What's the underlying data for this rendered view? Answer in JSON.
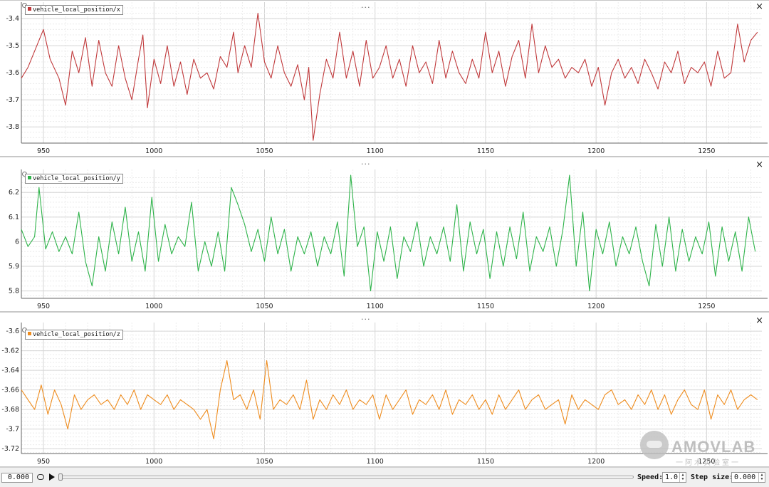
{
  "panels": [
    {
      "legend": "vehicle_local_position/x",
      "color": "#c0393b",
      "x_ticks": [
        "950",
        "1000",
        "1050",
        "1100",
        "1150",
        "1200",
        "1250"
      ],
      "y_ticks": [
        "-3.4",
        "-3.5",
        "-3.6",
        "-3.7",
        "-3.8"
      ],
      "dots": "...",
      "close": "×"
    },
    {
      "legend": "vehicle_local_position/y",
      "color": "#2eb34a",
      "x_ticks": [
        "950",
        "1000",
        "1050",
        "1100",
        "1150",
        "1200",
        "1250"
      ],
      "y_ticks": [
        "6.2",
        "6.1",
        "6",
        "5.9",
        "5.8"
      ],
      "dots": "...",
      "close": "×"
    },
    {
      "legend": "vehicle_local_position/z",
      "color": "#ee8c1e",
      "x_ticks": [
        "950",
        "1000",
        "1050",
        "1100",
        "1150",
        "1200",
        "1250"
      ],
      "y_ticks": [
        "-3.6",
        "-3.62",
        "-3.64",
        "-3.66",
        "-3.68",
        "-3.7",
        "-3.72"
      ],
      "dots": "...",
      "close": "×"
    }
  ],
  "chart_data": [
    {
      "type": "line",
      "series": [
        {
          "name": "vehicle_local_position/x",
          "color": "#c0393b"
        }
      ],
      "xlim": [
        940,
        1275
      ],
      "ylim": [
        -3.86,
        -3.36
      ],
      "x_ticks": [
        950,
        1000,
        1050,
        1100,
        1150,
        1200,
        1250
      ],
      "y_ticks": [
        -3.4,
        -3.5,
        -3.6,
        -3.7,
        -3.8
      ],
      "grid": true,
      "legend_position": "top-left",
      "x": [
        940,
        943,
        947,
        950,
        953,
        957,
        960,
        963,
        966,
        969,
        972,
        975,
        978,
        981,
        984,
        987,
        990,
        993,
        995,
        997,
        1000,
        1003,
        1006,
        1009,
        1012,
        1015,
        1018,
        1021,
        1024,
        1027,
        1030,
        1033,
        1036,
        1038,
        1041,
        1044,
        1047,
        1050,
        1053,
        1056,
        1059,
        1062,
        1065,
        1068,
        1070,
        1072,
        1075,
        1078,
        1081,
        1084,
        1087,
        1090,
        1093,
        1096,
        1099,
        1102,
        1105,
        1108,
        1111,
        1114,
        1117,
        1120,
        1123,
        1126,
        1129,
        1132,
        1135,
        1138,
        1141,
        1144,
        1147,
        1150,
        1153,
        1156,
        1159,
        1162,
        1165,
        1168,
        1171,
        1174,
        1177,
        1180,
        1183,
        1186,
        1189,
        1192,
        1195,
        1198,
        1201,
        1204,
        1207,
        1210,
        1213,
        1216,
        1219,
        1222,
        1225,
        1228,
        1231,
        1234,
        1237,
        1240,
        1243,
        1246,
        1249,
        1252,
        1255,
        1258,
        1261,
        1264,
        1267,
        1270,
        1273
      ],
      "values": [
        -3.62,
        -3.58,
        -3.5,
        -3.44,
        -3.55,
        -3.62,
        -3.72,
        -3.52,
        -3.6,
        -3.47,
        -3.65,
        -3.48,
        -3.6,
        -3.65,
        -3.5,
        -3.62,
        -3.7,
        -3.55,
        -3.46,
        -3.73,
        -3.55,
        -3.64,
        -3.5,
        -3.65,
        -3.56,
        -3.68,
        -3.55,
        -3.62,
        -3.6,
        -3.66,
        -3.54,
        -3.58,
        -3.45,
        -3.6,
        -3.5,
        -3.58,
        -3.38,
        -3.56,
        -3.62,
        -3.5,
        -3.6,
        -3.65,
        -3.57,
        -3.7,
        -3.58,
        -3.85,
        -3.68,
        -3.55,
        -3.62,
        -3.45,
        -3.62,
        -3.52,
        -3.65,
        -3.48,
        -3.62,
        -3.58,
        -3.5,
        -3.62,
        -3.55,
        -3.65,
        -3.5,
        -3.6,
        -3.56,
        -3.64,
        -3.48,
        -3.62,
        -3.52,
        -3.6,
        -3.64,
        -3.55,
        -3.62,
        -3.45,
        -3.6,
        -3.52,
        -3.65,
        -3.54,
        -3.48,
        -3.62,
        -3.42,
        -3.6,
        -3.5,
        -3.58,
        -3.55,
        -3.62,
        -3.58,
        -3.6,
        -3.55,
        -3.65,
        -3.58,
        -3.72,
        -3.6,
        -3.55,
        -3.62,
        -3.58,
        -3.64,
        -3.55,
        -3.6,
        -3.66,
        -3.56,
        -3.6,
        -3.52,
        -3.64,
        -3.58,
        -3.6,
        -3.56,
        -3.65,
        -3.52,
        -3.62,
        -3.6,
        -3.42,
        -3.56,
        -3.48,
        -3.45
      ]
    },
    {
      "type": "line",
      "series": [
        {
          "name": "vehicle_local_position/y",
          "color": "#2eb34a"
        }
      ],
      "xlim": [
        940,
        1275
      ],
      "ylim": [
        5.77,
        6.27
      ],
      "x_ticks": [
        950,
        1000,
        1050,
        1100,
        1150,
        1200,
        1250
      ],
      "y_ticks": [
        6.2,
        6.1,
        6,
        5.9,
        5.8
      ],
      "grid": true,
      "legend_position": "top-left",
      "x": [
        940,
        943,
        946,
        948,
        951,
        954,
        957,
        960,
        963,
        966,
        969,
        972,
        975,
        978,
        981,
        984,
        987,
        990,
        993,
        996,
        999,
        1002,
        1005,
        1008,
        1011,
        1014,
        1017,
        1020,
        1023,
        1026,
        1029,
        1032,
        1035,
        1038,
        1041,
        1044,
        1047,
        1050,
        1053,
        1056,
        1059,
        1062,
        1065,
        1068,
        1071,
        1074,
        1077,
        1080,
        1083,
        1086,
        1089,
        1092,
        1095,
        1098,
        1101,
        1104,
        1107,
        1110,
        1113,
        1116,
        1119,
        1122,
        1125,
        1128,
        1131,
        1134,
        1137,
        1140,
        1143,
        1146,
        1149,
        1152,
        1155,
        1158,
        1161,
        1164,
        1167,
        1170,
        1173,
        1176,
        1179,
        1182,
        1185,
        1188,
        1191,
        1194,
        1197,
        1200,
        1203,
        1206,
        1209,
        1212,
        1215,
        1218,
        1221,
        1224,
        1227,
        1230,
        1233,
        1236,
        1239,
        1242,
        1245,
        1248,
        1251,
        1254,
        1257,
        1260,
        1263,
        1266,
        1269,
        1272
      ],
      "values": [
        6.05,
        5.98,
        6.02,
        6.22,
        5.97,
        6.04,
        5.96,
        6.02,
        5.95,
        6.12,
        5.92,
        5.82,
        6.02,
        5.88,
        6.08,
        5.95,
        6.14,
        5.92,
        6.04,
        5.88,
        6.18,
        5.92,
        6.07,
        5.95,
        6.02,
        5.98,
        6.16,
        5.88,
        6.0,
        5.9,
        6.04,
        5.88,
        6.22,
        6.15,
        6.07,
        5.96,
        6.05,
        5.92,
        6.1,
        5.95,
        6.05,
        5.88,
        6.02,
        5.95,
        6.04,
        5.9,
        6.02,
        5.95,
        6.08,
        5.86,
        6.27,
        5.98,
        6.06,
        5.8,
        6.04,
        5.92,
        6.06,
        5.85,
        6.02,
        5.96,
        6.08,
        5.9,
        6.02,
        5.95,
        6.06,
        5.92,
        6.15,
        5.88,
        6.08,
        5.95,
        6.05,
        5.85,
        6.04,
        5.9,
        6.06,
        5.93,
        6.12,
        5.88,
        6.02,
        5.96,
        6.06,
        5.9,
        6.05,
        6.27,
        5.9,
        6.12,
        5.8,
        6.05,
        5.95,
        6.08,
        5.9,
        6.02,
        5.95,
        6.06,
        5.92,
        5.82,
        6.07,
        5.9,
        6.1,
        5.88,
        6.05,
        5.92,
        6.02,
        5.95,
        6.08,
        5.86,
        6.06,
        5.92,
        6.04,
        5.88,
        6.1,
        5.96
      ]
    },
    {
      "type": "line",
      "series": [
        {
          "name": "vehicle_local_position/z",
          "color": "#ee8c1e"
        }
      ],
      "xlim": [
        940,
        1275
      ],
      "ylim": [
        -3.725,
        -3.597
      ],
      "x_ticks": [
        950,
        1000,
        1050,
        1100,
        1150,
        1200,
        1250
      ],
      "y_ticks": [
        -3.6,
        -3.62,
        -3.64,
        -3.66,
        -3.68,
        -3.7,
        -3.72
      ],
      "grid": true,
      "legend_position": "top-left",
      "x": [
        940,
        943,
        946,
        949,
        952,
        955,
        958,
        961,
        964,
        967,
        970,
        973,
        976,
        979,
        982,
        985,
        988,
        991,
        994,
        997,
        1000,
        1003,
        1006,
        1009,
        1012,
        1015,
        1018,
        1021,
        1024,
        1027,
        1030,
        1033,
        1036,
        1039,
        1042,
        1045,
        1048,
        1051,
        1054,
        1057,
        1060,
        1063,
        1066,
        1069,
        1072,
        1075,
        1078,
        1081,
        1084,
        1087,
        1090,
        1093,
        1096,
        1099,
        1102,
        1105,
        1108,
        1111,
        1114,
        1117,
        1120,
        1123,
        1126,
        1129,
        1132,
        1135,
        1138,
        1141,
        1144,
        1147,
        1150,
        1153,
        1156,
        1159,
        1162,
        1165,
        1168,
        1171,
        1174,
        1177,
        1180,
        1183,
        1186,
        1189,
        1192,
        1195,
        1198,
        1201,
        1204,
        1207,
        1210,
        1213,
        1216,
        1219,
        1222,
        1225,
        1228,
        1231,
        1234,
        1237,
        1240,
        1243,
        1246,
        1249,
        1252,
        1255,
        1258,
        1261,
        1264,
        1267,
        1270,
        1273
      ],
      "values": [
        -3.66,
        -3.67,
        -3.68,
        -3.655,
        -3.685,
        -3.66,
        -3.675,
        -3.7,
        -3.665,
        -3.68,
        -3.67,
        -3.665,
        -3.675,
        -3.67,
        -3.68,
        -3.665,
        -3.675,
        -3.66,
        -3.68,
        -3.665,
        -3.67,
        -3.675,
        -3.665,
        -3.68,
        -3.67,
        -3.675,
        -3.68,
        -3.69,
        -3.68,
        -3.71,
        -3.66,
        -3.63,
        -3.67,
        -3.665,
        -3.68,
        -3.66,
        -3.69,
        -3.63,
        -3.68,
        -3.67,
        -3.675,
        -3.665,
        -3.68,
        -3.65,
        -3.69,
        -3.67,
        -3.68,
        -3.665,
        -3.675,
        -3.66,
        -3.68,
        -3.67,
        -3.675,
        -3.665,
        -3.69,
        -3.665,
        -3.68,
        -3.67,
        -3.66,
        -3.685,
        -3.67,
        -3.675,
        -3.665,
        -3.68,
        -3.66,
        -3.685,
        -3.67,
        -3.675,
        -3.665,
        -3.68,
        -3.67,
        -3.685,
        -3.665,
        -3.68,
        -3.67,
        -3.66,
        -3.68,
        -3.67,
        -3.665,
        -3.68,
        -3.675,
        -3.67,
        -3.695,
        -3.665,
        -3.68,
        -3.67,
        -3.675,
        -3.68,
        -3.665,
        -3.66,
        -3.675,
        -3.67,
        -3.68,
        -3.665,
        -3.675,
        -3.66,
        -3.68,
        -3.665,
        -3.685,
        -3.67,
        -3.66,
        -3.675,
        -3.68,
        -3.66,
        -3.69,
        -3.665,
        -3.675,
        -3.66,
        -3.68,
        -3.67,
        -3.665,
        -3.67
      ]
    }
  ],
  "watermark": {
    "title": "AMOVLAB",
    "subtitle": "一阿木实验室一"
  },
  "bottom_bar": {
    "time_value": "0.000",
    "speed_label": "Speed:",
    "speed_value": "1.0",
    "step_label": "Step size:",
    "step_value": "0.000",
    "loop_icon": "loop-icon",
    "play_icon": "play-icon"
  }
}
